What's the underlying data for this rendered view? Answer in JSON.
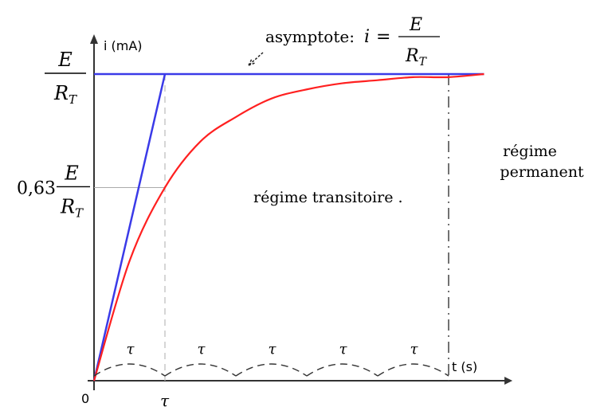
{
  "chart_data": {
    "type": "line",
    "axes": {
      "y_label": "i (mA)",
      "x_label": "t (s)",
      "origin_label": "0",
      "tau_tick_label": "τ"
    },
    "y_levels": {
      "asymptote": {
        "coef": "",
        "num": "E",
        "den": "R",
        "sub": "T"
      },
      "at_tau": {
        "coef": "0,63",
        "num": "E",
        "den": "R",
        "sub": "T"
      }
    },
    "asymptote_annotation": {
      "prefix": "asymptote:",
      "lhs": "i",
      "eq": "=",
      "num": "E",
      "den": "R",
      "sub": "T"
    },
    "regions": {
      "transient": "régime transitoire .",
      "steady_line1": "régime",
      "steady_line2": "permanent"
    },
    "tau_spans": {
      "count": 5,
      "label": "τ"
    },
    "series": [
      {
        "curve": "exponential",
        "formula": "i(t) = (E/R_T)(1 - e^(-t/τ))",
        "x": [
          0,
          0.5,
          1,
          1.5,
          2,
          2.5,
          3,
          3.5,
          4,
          4.5,
          5,
          5.5
        ],
        "y": [
          0,
          0.39,
          0.63,
          0.78,
          0.86,
          0.92,
          0.95,
          0.97,
          0.98,
          0.99,
          0.99,
          1.0
        ],
        "color": "#ff2020"
      },
      {
        "curve": "tangent at origin",
        "x": [
          0,
          1
        ],
        "y": [
          0,
          1
        ],
        "color": "#3a3ae8"
      },
      {
        "curve": "asymptote",
        "x": [
          0,
          5.5
        ],
        "y": [
          1,
          1
        ],
        "color": "#3a3ae8"
      }
    ],
    "markers": [
      {
        "kind": "vertical-dashed",
        "x": 1,
        "color": "#bbbbbb"
      },
      {
        "kind": "vertical-dashdot",
        "x": 5,
        "color": "#444444"
      },
      {
        "kind": "horizontal-guide",
        "y": 0.63,
        "color": "#aaaaaa"
      }
    ],
    "x_domain": [
      0,
      5.9
    ],
    "y_domain": [
      0,
      1.13
    ]
  }
}
